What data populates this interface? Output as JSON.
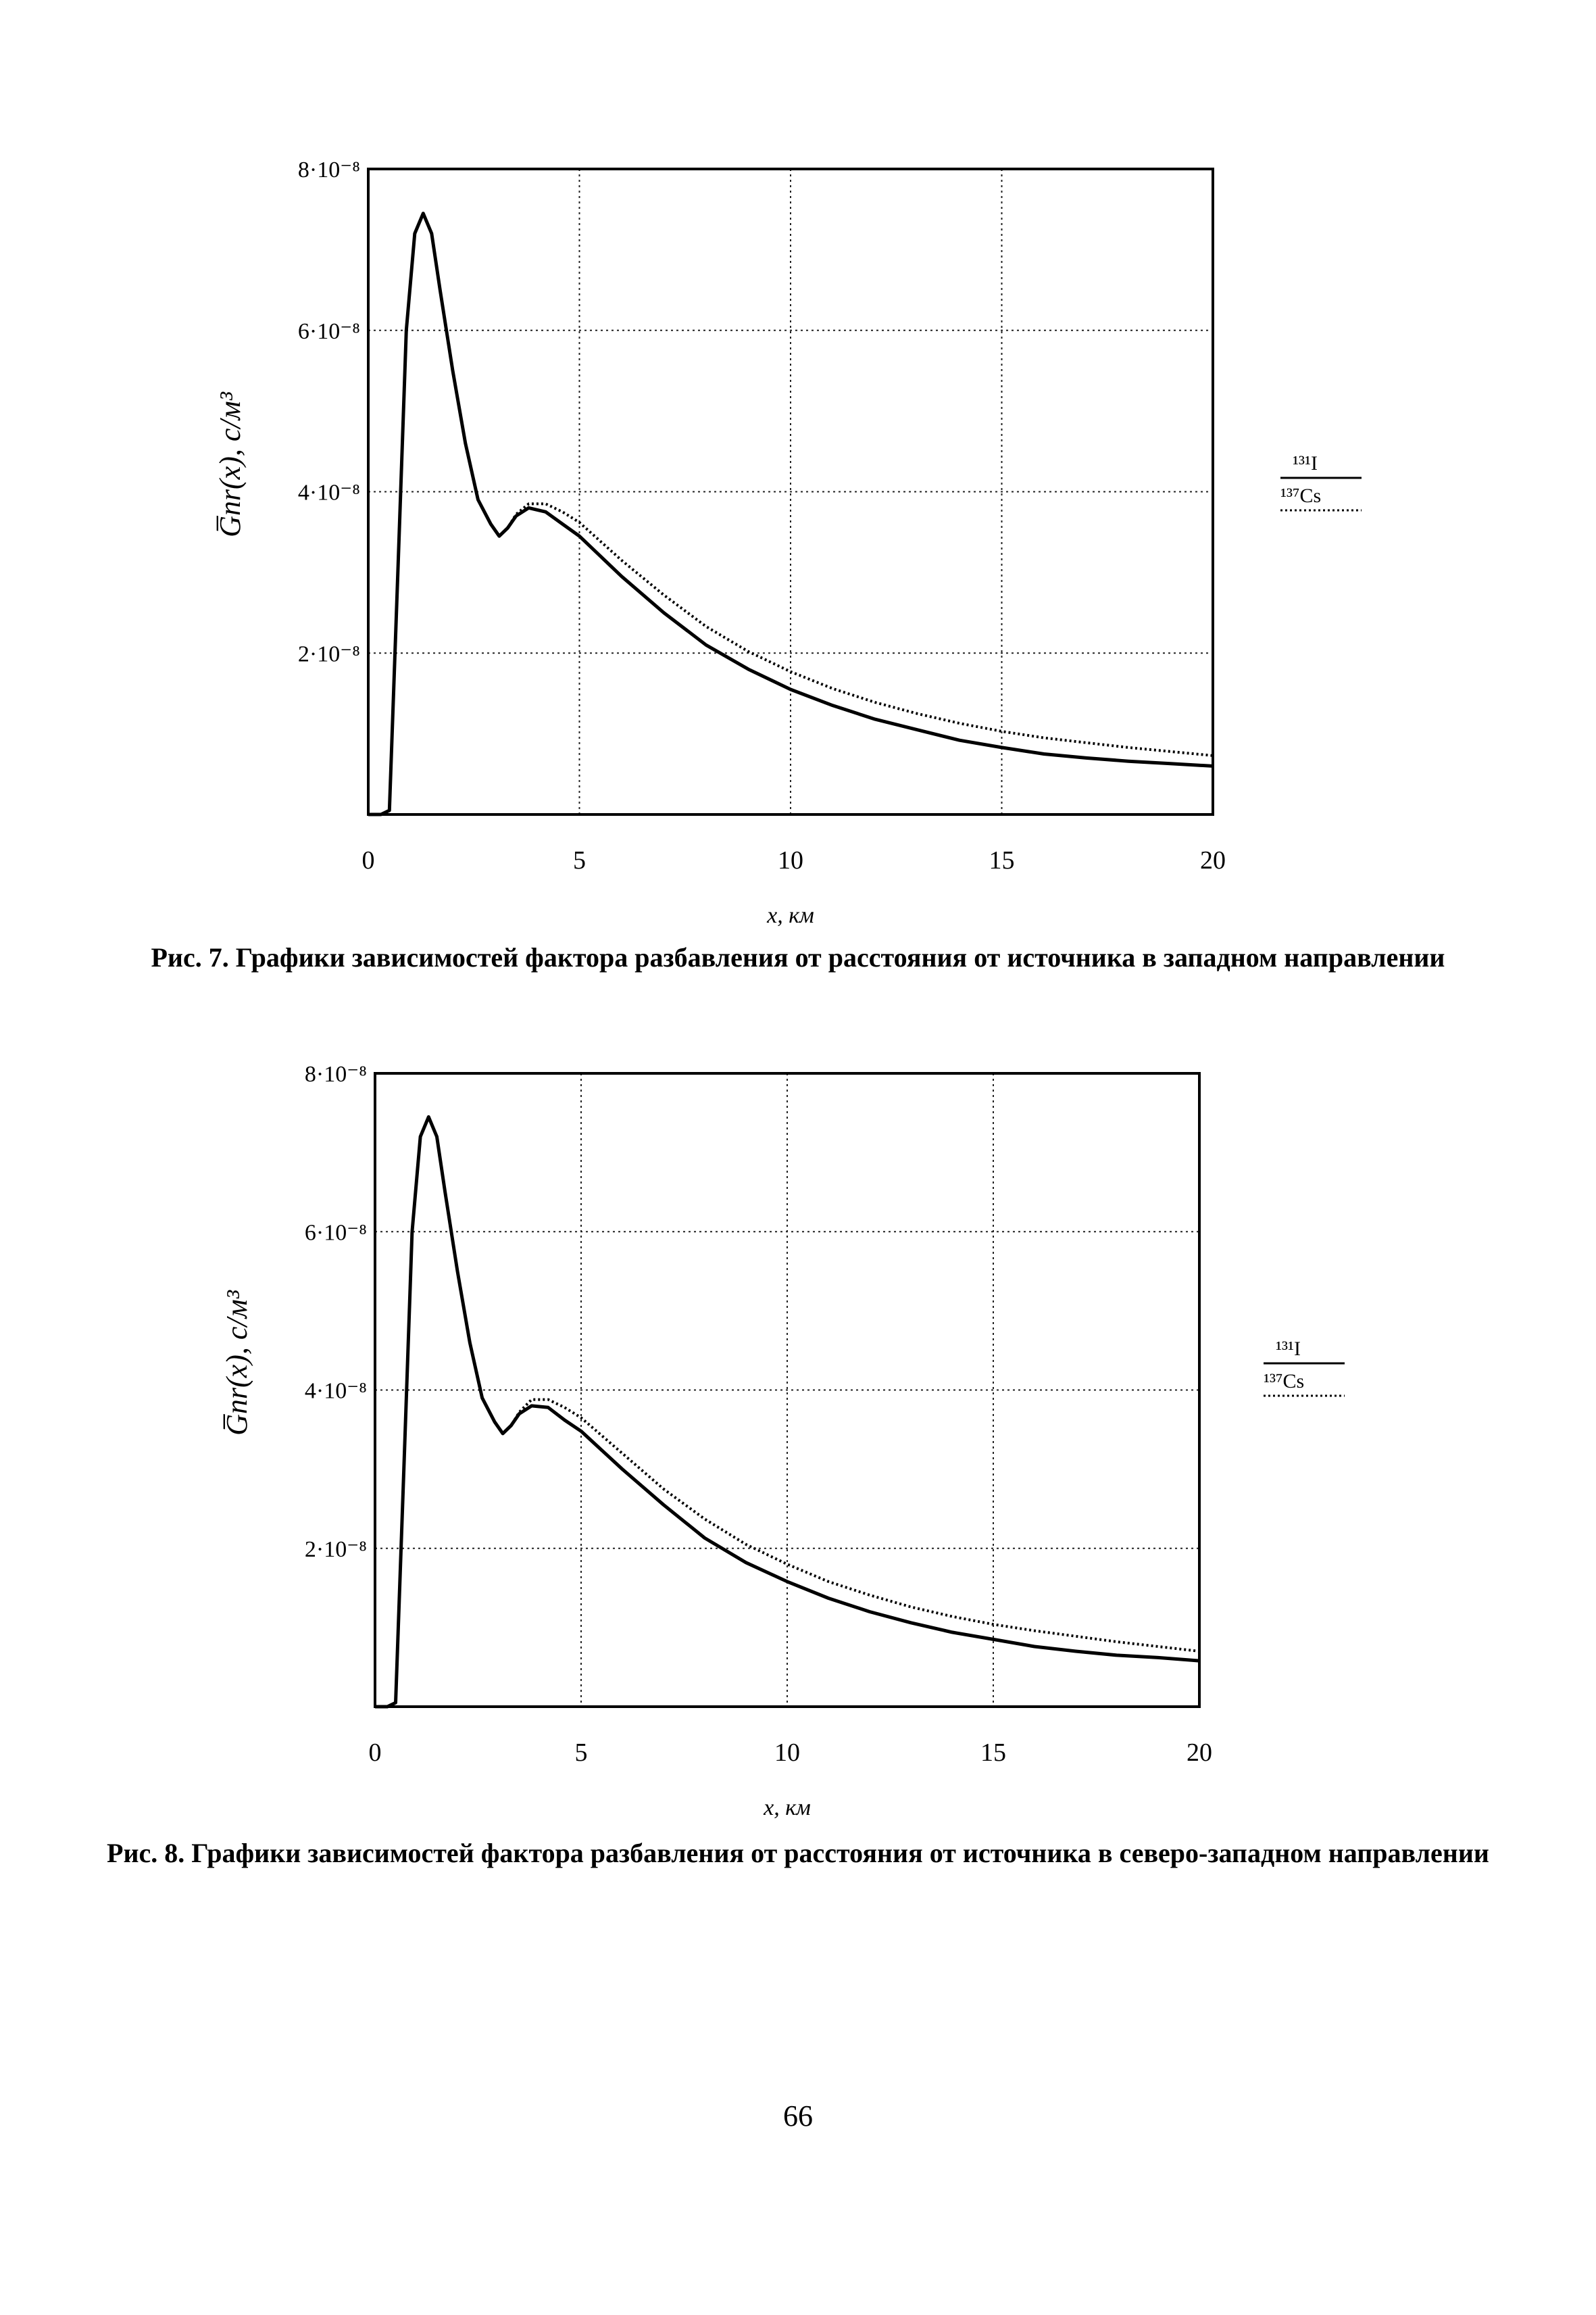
{
  "page_number": "66",
  "chart_data": [
    {
      "type": "line",
      "xlabel": "x, км",
      "ylabel": "G̅nr(x), с/м³",
      "xlim": [
        0,
        20
      ],
      "ylim": [
        0,
        8e-08
      ],
      "x_ticks": [
        "0",
        "5",
        "10",
        "15",
        "20"
      ],
      "y_ticks": [
        "2·10⁻⁸",
        "4·10⁻⁸",
        "6·10⁻⁸",
        "8·10⁻⁸"
      ],
      "grid": true,
      "legend_position": "right",
      "caption": "Рис. 7. Графики зависимостей фактора разбавления от расстояния от источника в западном направлении",
      "x": [
        0,
        0.3,
        0.5,
        0.7,
        0.9,
        1.1,
        1.3,
        1.5,
        1.7,
        2.0,
        2.3,
        2.6,
        2.9,
        3.1,
        3.3,
        3.5,
        3.8,
        4.2,
        4.6,
        5,
        6,
        7,
        8,
        9,
        10,
        11,
        12,
        13,
        14,
        15,
        16,
        17,
        18,
        19,
        20
      ],
      "series": [
        {
          "name": "¹³¹I",
          "line_style": "solid",
          "color": "#000000",
          "values": [
            0,
            0,
            5e-10,
            3e-08,
            6e-08,
            7.2e-08,
            7.45e-08,
            7.2e-08,
            6.5e-08,
            5.5e-08,
            4.6e-08,
            3.9e-08,
            3.6e-08,
            3.45e-08,
            3.55e-08,
            3.7e-08,
            3.8e-08,
            3.75e-08,
            3.6e-08,
            3.45e-08,
            2.95e-08,
            2.5e-08,
            2.1e-08,
            1.8e-08,
            1.55e-08,
            1.35e-08,
            1.18e-08,
            1.05e-08,
            9.2e-09,
            8.3e-09,
            7.5e-09,
            7e-09,
            6.6e-09,
            6.3e-09,
            6e-09
          ]
        },
        {
          "name": "¹³⁷Cs",
          "line_style": "dotted",
          "color": "#000000",
          "values": [
            0,
            0,
            5e-10,
            3e-08,
            6e-08,
            7.2e-08,
            7.45e-08,
            7.2e-08,
            6.5e-08,
            5.5e-08,
            4.6e-08,
            3.9e-08,
            3.6e-08,
            3.45e-08,
            3.55e-08,
            3.72e-08,
            3.85e-08,
            3.85e-08,
            3.75e-08,
            3.62e-08,
            3.15e-08,
            2.72e-08,
            2.33e-08,
            2.02e-08,
            1.77e-08,
            1.56e-08,
            1.39e-08,
            1.25e-08,
            1.13e-08,
            1.03e-08,
            9.5e-09,
            8.9e-09,
            8.3e-09,
            7.8e-09,
            7.3e-09
          ]
        }
      ]
    },
    {
      "type": "line",
      "xlabel": "x, км",
      "ylabel": "G̅nr(x), с/м³",
      "xlim": [
        0,
        20
      ],
      "ylim": [
        0,
        8e-08
      ],
      "x_ticks": [
        "0",
        "5",
        "10",
        "15",
        "20"
      ],
      "y_ticks": [
        "2·10⁻⁸",
        "4·10⁻⁸",
        "6·10⁻⁸",
        "8·10⁻⁸"
      ],
      "grid": true,
      "legend_position": "right",
      "caption": "Рис. 8. Графики зависимостей фактора разбавления от расстояния от источника в северо-западном направлении",
      "x": [
        0,
        0.3,
        0.5,
        0.7,
        0.9,
        1.1,
        1.3,
        1.5,
        1.7,
        2.0,
        2.3,
        2.6,
        2.9,
        3.1,
        3.3,
        3.5,
        3.8,
        4.2,
        4.6,
        5,
        6,
        7,
        8,
        9,
        10,
        11,
        12,
        13,
        14,
        15,
        16,
        17,
        18,
        19,
        20
      ],
      "series": [
        {
          "name": "¹³¹I",
          "line_style": "solid",
          "color": "#000000",
          "values": [
            0,
            0,
            5e-10,
            3e-08,
            6e-08,
            7.2e-08,
            7.45e-08,
            7.2e-08,
            6.5e-08,
            5.5e-08,
            4.6e-08,
            3.9e-08,
            3.6e-08,
            3.45e-08,
            3.55e-08,
            3.7e-08,
            3.8e-08,
            3.78e-08,
            3.62e-08,
            3.48e-08,
            3e-08,
            2.55e-08,
            2.13e-08,
            1.82e-08,
            1.58e-08,
            1.37e-08,
            1.2e-08,
            1.06e-08,
            9.4e-09,
            8.5e-09,
            7.6e-09,
            7e-09,
            6.5e-09,
            6.2e-09,
            5.8e-09
          ]
        },
        {
          "name": "¹³⁷Cs",
          "line_style": "dotted",
          "color": "#000000",
          "values": [
            0,
            0,
            5e-10,
            3e-08,
            6e-08,
            7.2e-08,
            7.45e-08,
            7.2e-08,
            6.5e-08,
            5.5e-08,
            4.6e-08,
            3.9e-08,
            3.6e-08,
            3.45e-08,
            3.55e-08,
            3.72e-08,
            3.88e-08,
            3.88e-08,
            3.78e-08,
            3.65e-08,
            3.2e-08,
            2.75e-08,
            2.37e-08,
            2.05e-08,
            1.8e-08,
            1.58e-08,
            1.41e-08,
            1.26e-08,
            1.14e-08,
            1.04e-08,
            9.6e-09,
            8.9e-09,
            8.2e-09,
            7.6e-09,
            7e-09
          ]
        }
      ]
    }
  ]
}
